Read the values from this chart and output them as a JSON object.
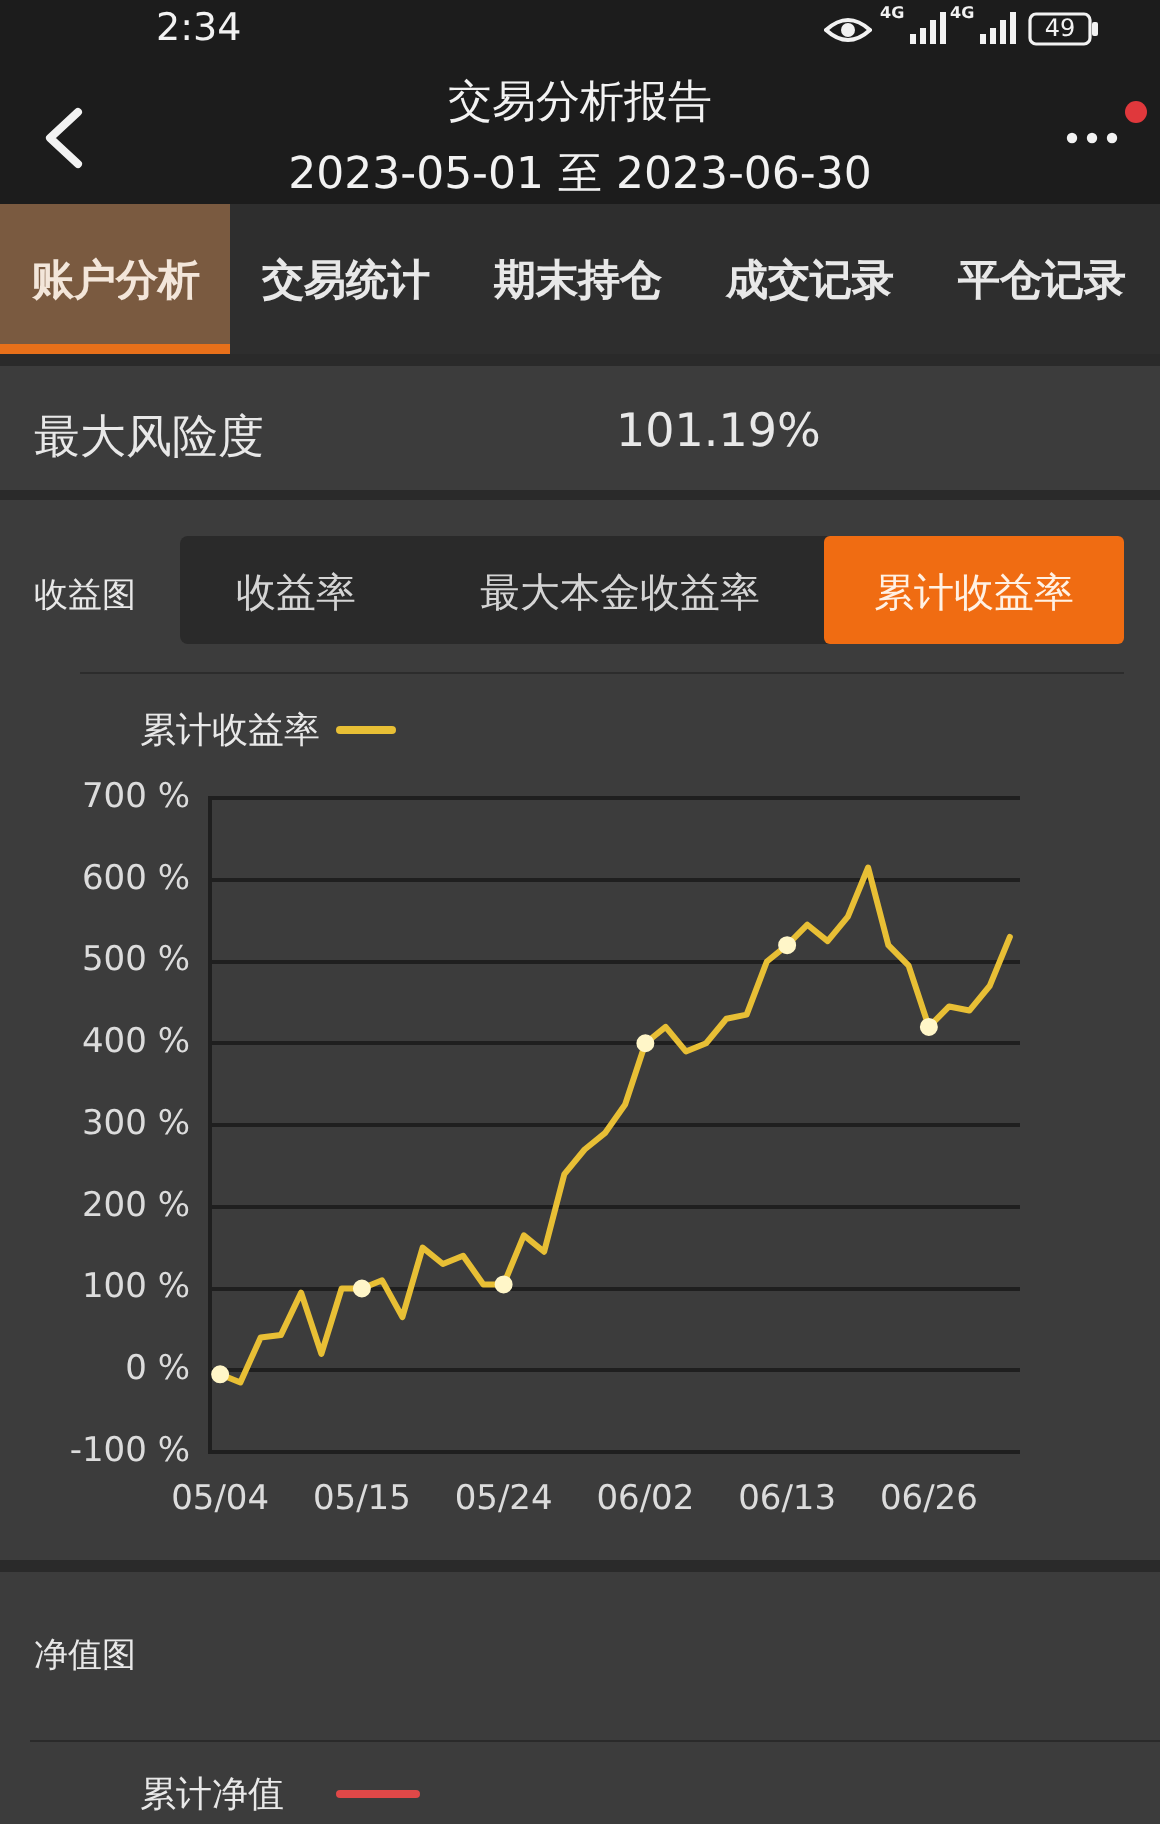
{
  "chart_data": [
    {
      "type": "other",
      "title": "交易分析报告",
      "subtitle": "2023-05-01 至 2023-06-30",
      "annotations": [
        "2:34",
        "4G",
        "4G",
        "49",
        "账户分析",
        "交易统计",
        "期末持仓",
        "成交记录",
        "平仓记录",
        "最大风险度",
        "101.19%",
        "收益图",
        "收益率",
        "最大本金收益率",
        "累计收益率"
      ]
    },
    {
      "type": "line",
      "categories": [
        "05/04",
        null,
        null,
        null,
        null,
        null,
        null,
        "05/15",
        null,
        null,
        null,
        null,
        null,
        null,
        "05/24",
        null,
        null,
        null,
        null,
        null,
        null,
        "06/02",
        null,
        null,
        null,
        null,
        null,
        null,
        "06/13",
        null,
        null,
        null,
        null,
        null,
        null,
        "06/26",
        null,
        null,
        null,
        null
      ],
      "series": [
        {
          "name": "累计收益率",
          "color": "#e8bf35",
          "values": [
            -5,
            -15,
            40,
            43,
            95,
            20,
            100,
            100,
            110,
            65,
            150,
            130,
            140,
            105,
            105,
            165,
            145,
            240,
            270,
            290,
            325,
            400,
            420,
            390,
            400,
            430,
            435,
            500,
            520,
            545,
            525,
            555,
            615,
            520,
            495,
            420,
            445,
            440,
            470,
            530
          ]
        },
        {
          "type": "scatter",
          "color": "#fff6c8",
          "marker": "circle",
          "x": [
            "05/04",
            "05/15",
            "05/24",
            "06/02",
            "06/13",
            "06/26"
          ],
          "values": [
            -5,
            100,
            105,
            400,
            520,
            420
          ]
        }
      ],
      "ylim": [
        -100,
        700
      ],
      "yticks": [
        {
          "value": -100,
          "label": "-100 %"
        },
        {
          "value": 0,
          "label": "0 %"
        },
        {
          "value": 100,
          "label": "100 %"
        },
        {
          "value": 200,
          "label": "200 %"
        },
        {
          "value": 300,
          "label": "300 %"
        },
        {
          "value": 400,
          "label": "400 %"
        },
        {
          "value": 500,
          "label": "500 %"
        },
        {
          "value": 600,
          "label": "600 %"
        },
        {
          "value": 700,
          "label": "700 %"
        }
      ],
      "grid": "y",
      "legend": "top left"
    },
    {
      "type": "other",
      "title": "净值图",
      "annotations": [
        "累计净值"
      ]
    }
  ]
}
